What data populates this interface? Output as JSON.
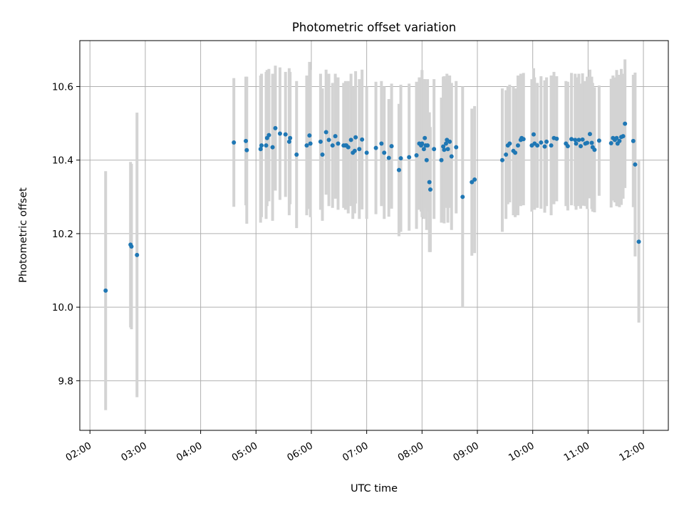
{
  "chart_data": {
    "type": "scatter",
    "title": "Photometric offset variation",
    "xlabel": "UTC time",
    "ylabel": "Photometric offset",
    "x_unit": "UTC time (HH:MM)",
    "xlim": [
      "01:49",
      "12:27"
    ],
    "ylim": [
      9.665,
      10.725
    ],
    "x_ticks": [
      "02:00",
      "03:00",
      "04:00",
      "05:00",
      "06:00",
      "07:00",
      "08:00",
      "09:00",
      "10:00",
      "11:00",
      "12:00"
    ],
    "y_ticks": [
      "9.8",
      "10.0",
      "10.2",
      "10.4",
      "10.6"
    ],
    "grid": true,
    "colors": {
      "point": "#1f77b4",
      "errorbar": "#d3d3d3",
      "grid": "#b0b0b0"
    },
    "points": [
      [
        "02:17",
        10.045,
        0.325
      ],
      [
        "02:44",
        10.17,
        0.225
      ],
      [
        "02:45",
        10.165,
        0.225
      ],
      [
        "02:51",
        10.142,
        0.387
      ],
      [
        "04:36",
        10.448,
        0.175
      ],
      [
        "04:49",
        10.452,
        0.175
      ],
      [
        "04:50",
        10.427,
        0.2
      ],
      [
        "05:05",
        10.43,
        0.2
      ],
      [
        "05:06",
        10.44,
        0.195
      ],
      [
        "05:11",
        10.44,
        0.2
      ],
      [
        "05:12",
        10.46,
        0.185
      ],
      [
        "05:14",
        10.468,
        0.18
      ],
      [
        "05:18",
        10.435,
        0.2
      ],
      [
        "05:21",
        10.487,
        0.17
      ],
      [
        "05:26",
        10.472,
        0.18
      ],
      [
        "05:32",
        10.47,
        0.17
      ],
      [
        "05:36",
        10.45,
        0.2
      ],
      [
        "05:37",
        10.46,
        0.18
      ],
      [
        "05:44",
        10.415,
        0.2
      ],
      [
        "05:55",
        10.44,
        0.19
      ],
      [
        "05:58",
        10.467,
        0.2
      ],
      [
        "05:59",
        10.445,
        0.2
      ],
      [
        "06:10",
        10.45,
        0.185
      ],
      [
        "06:12",
        10.415,
        0.18
      ],
      [
        "06:16",
        10.476,
        0.17
      ],
      [
        "06:19",
        10.455,
        0.18
      ],
      [
        "06:23",
        10.44,
        0.17
      ],
      [
        "06:26",
        10.465,
        0.17
      ],
      [
        "06:29",
        10.445,
        0.18
      ],
      [
        "06:35",
        10.44,
        0.17
      ],
      [
        "06:37",
        10.44,
        0.175
      ],
      [
        "06:38",
        10.44,
        0.17
      ],
      [
        "06:40",
        10.435,
        0.18
      ],
      [
        "06:43",
        10.455,
        0.18
      ],
      [
        "06:45",
        10.42,
        0.18
      ],
      [
        "06:47",
        10.425,
        0.17
      ],
      [
        "06:48",
        10.462,
        0.18
      ],
      [
        "06:52",
        10.43,
        0.19
      ],
      [
        "06:55",
        10.456,
        0.19
      ],
      [
        "07:00",
        10.42,
        0.18
      ],
      [
        "07:10",
        10.433,
        0.18
      ],
      [
        "07:16",
        10.445,
        0.17
      ],
      [
        "07:19",
        10.42,
        0.18
      ],
      [
        "07:24",
        10.406,
        0.16
      ],
      [
        "07:27",
        10.438,
        0.17
      ],
      [
        "07:35",
        10.373,
        0.18
      ],
      [
        "07:37",
        10.405,
        0.2
      ],
      [
        "07:46",
        10.408,
        0.2
      ],
      [
        "07:54",
        10.413,
        0.2
      ],
      [
        "07:57",
        10.445,
        0.18
      ],
      [
        "07:59",
        10.44,
        0.18
      ],
      [
        "08:00",
        10.445,
        0.2
      ],
      [
        "08:02",
        10.43,
        0.19
      ],
      [
        "08:03",
        10.46,
        0.16
      ],
      [
        "08:04",
        10.44,
        0.17
      ],
      [
        "08:05",
        10.4,
        0.19
      ],
      [
        "08:06",
        10.44,
        0.18
      ],
      [
        "08:08",
        10.34,
        0.19
      ],
      [
        "08:09",
        10.32,
        0.17
      ],
      [
        "08:13",
        10.43,
        0.19
      ],
      [
        "08:21",
        10.4,
        0.17
      ],
      [
        "08:23",
        10.437,
        0.19
      ],
      [
        "08:24",
        10.428,
        0.2
      ],
      [
        "08:26",
        10.445,
        0.175
      ],
      [
        "08:27",
        10.455,
        0.18
      ],
      [
        "08:28",
        10.43,
        0.2
      ],
      [
        "08:30",
        10.45,
        0.18
      ],
      [
        "08:32",
        10.41,
        0.2
      ],
      [
        "08:37",
        10.435,
        0.18
      ],
      [
        "08:44",
        10.3,
        0.3
      ],
      [
        "08:54",
        10.34,
        0.2
      ],
      [
        "08:57",
        10.347,
        0.2
      ],
      [
        "09:27",
        10.4,
        0.195
      ],
      [
        "09:31",
        10.415,
        0.175
      ],
      [
        "09:33",
        10.44,
        0.16
      ],
      [
        "09:35",
        10.445,
        0.16
      ],
      [
        "09:39",
        10.425,
        0.175
      ],
      [
        "09:41",
        10.42,
        0.175
      ],
      [
        "09:44",
        10.44,
        0.19
      ],
      [
        "09:47",
        10.455,
        0.18
      ],
      [
        "09:48",
        10.46,
        0.17
      ],
      [
        "09:50",
        10.457,
        0.18
      ],
      [
        "09:59",
        10.44,
        0.18
      ],
      [
        "10:01",
        10.47,
        0.18
      ],
      [
        "10:02",
        10.445,
        0.18
      ],
      [
        "10:05",
        10.44,
        0.17
      ],
      [
        "10:09",
        10.448,
        0.18
      ],
      [
        "10:13",
        10.437,
        0.18
      ],
      [
        "10:15",
        10.45,
        0.175
      ],
      [
        "10:20",
        10.44,
        0.19
      ],
      [
        "10:23",
        10.46,
        0.18
      ],
      [
        "10:26",
        10.458,
        0.17
      ],
      [
        "10:36",
        10.445,
        0.17
      ],
      [
        "10:38",
        10.438,
        0.175
      ],
      [
        "10:42",
        10.457,
        0.18
      ],
      [
        "10:46",
        10.455,
        0.18
      ],
      [
        "10:47",
        10.445,
        0.18
      ],
      [
        "10:50",
        10.455,
        0.18
      ],
      [
        "10:52",
        10.438,
        0.17
      ],
      [
        "10:54",
        10.456,
        0.18
      ],
      [
        "10:57",
        10.445,
        0.17
      ],
      [
        "10:59",
        10.447,
        0.18
      ],
      [
        "11:02",
        10.471,
        0.175
      ],
      [
        "11:04",
        10.447,
        0.18
      ],
      [
        "11:05",
        10.435,
        0.175
      ],
      [
        "11:07",
        10.428,
        0.17
      ],
      [
        "11:12",
        10.453,
        0.15
      ],
      [
        "11:25",
        10.446,
        0.175
      ],
      [
        "11:27",
        10.46,
        0.17
      ],
      [
        "11:29",
        10.455,
        0.17
      ],
      [
        "11:31",
        10.46,
        0.185
      ],
      [
        "11:32",
        10.445,
        0.17
      ],
      [
        "11:34",
        10.452,
        0.18
      ],
      [
        "11:36",
        10.463,
        0.185
      ],
      [
        "11:38",
        10.465,
        0.17
      ],
      [
        "11:40",
        10.499,
        0.175
      ],
      [
        "11:49",
        10.452,
        0.18
      ],
      [
        "11:51",
        10.388,
        0.25
      ],
      [
        "11:55",
        10.178,
        0.22
      ]
    ]
  }
}
